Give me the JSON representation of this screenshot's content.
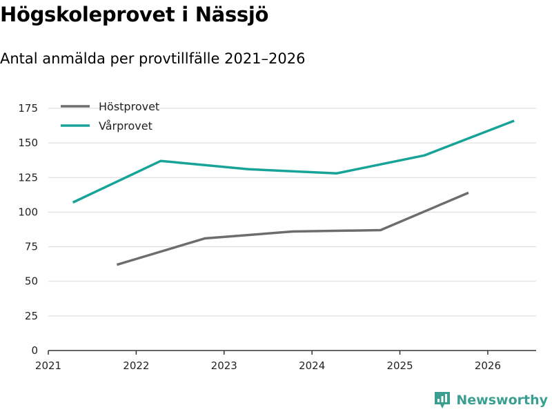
{
  "chart_data": {
    "type": "line",
    "title": "Högskoleprovet i Nässjö",
    "subtitle": "Antal anmälda per provtillfälle 2021–2026",
    "xlabel": "",
    "ylabel": "",
    "xlim": [
      2021,
      2026.55
    ],
    "ylim": [
      0,
      175
    ],
    "x_ticks": [
      "2021",
      "2022",
      "2023",
      "2024",
      "2025",
      "2026"
    ],
    "y_ticks": [
      "0",
      "25",
      "50",
      "75",
      "100",
      "125",
      "150",
      "175"
    ],
    "grid": true,
    "legend_position": "top-left",
    "series": [
      {
        "name": "Höstprovet",
        "color": "#6d6d6d",
        "x": [
          2021.78,
          2022.78,
          2023.78,
          2024.78,
          2025.78
        ],
        "values": [
          62,
          81,
          86,
          87,
          114
        ]
      },
      {
        "name": "Vårprovet",
        "color": "#17a398",
        "x": [
          2021.28,
          2022.28,
          2023.28,
          2024.28,
          2025.28,
          2026.3
        ],
        "values": [
          107,
          137,
          131,
          128,
          141,
          166
        ]
      }
    ]
  },
  "brand": {
    "name": "Newsworthy",
    "icon": "newsworthy-logo-icon",
    "color": "#3a9f91"
  }
}
